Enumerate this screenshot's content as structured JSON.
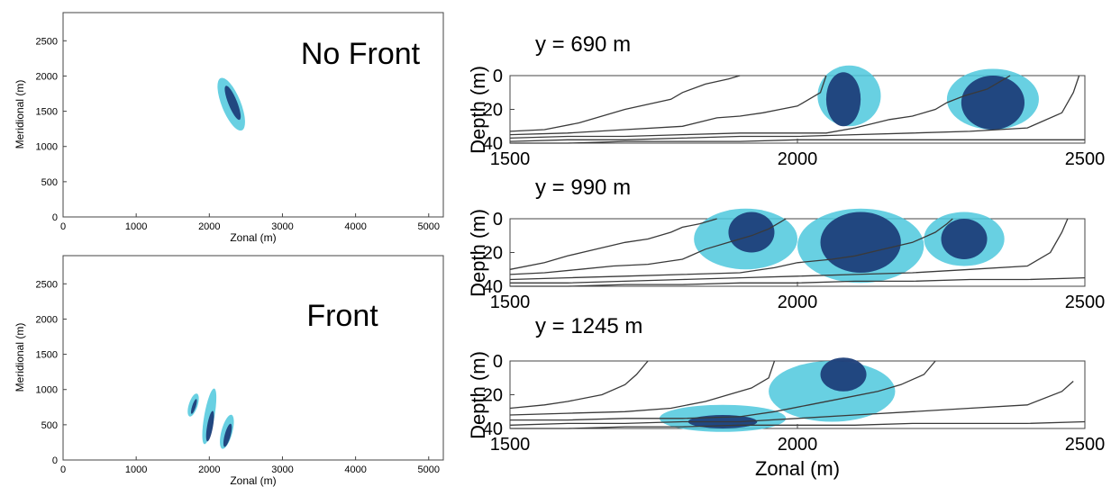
{
  "chart_data": [
    {
      "id": "map-no-front",
      "type": "scatter",
      "annotation": "No Front",
      "xlabel": "Zonal (m)",
      "ylabel": "Meridional (m)",
      "xlim": [
        0,
        5200
      ],
      "ylim": [
        0,
        2900
      ],
      "xticks": [
        0,
        1000,
        2000,
        3000,
        4000,
        5000
      ],
      "yticks": [
        0,
        500,
        1000,
        1500,
        2000,
        2500
      ],
      "colors": {
        "light": "#4ec8dd",
        "dark": "#1d3f7a"
      },
      "patches": [
        {
          "shade": "light",
          "x": 2300,
          "y": 1600,
          "rx": 130,
          "ry": 400,
          "rot": -22
        },
        {
          "shade": "dark",
          "x": 2320,
          "y": 1620,
          "rx": 60,
          "ry": 260,
          "rot": -22
        }
      ]
    },
    {
      "id": "map-front",
      "type": "scatter",
      "annotation": "Front",
      "xlabel": "Zonal (m)",
      "ylabel": "Meridional (m)",
      "xlim": [
        0,
        5200
      ],
      "ylim": [
        0,
        2900
      ],
      "xticks": [
        0,
        1000,
        2000,
        3000,
        4000,
        5000
      ],
      "yticks": [
        0,
        500,
        1000,
        1500,
        2000,
        2500
      ],
      "colors": {
        "light": "#4ec8dd",
        "dark": "#1d3f7a"
      },
      "patches": [
        {
          "shade": "light",
          "x": 1780,
          "y": 780,
          "rx": 60,
          "ry": 170,
          "rot": 18
        },
        {
          "shade": "dark",
          "x": 1790,
          "y": 760,
          "rx": 25,
          "ry": 110,
          "rot": 18
        },
        {
          "shade": "light",
          "x": 2000,
          "y": 620,
          "rx": 70,
          "ry": 400,
          "rot": 10
        },
        {
          "shade": "dark",
          "x": 2010,
          "y": 480,
          "rx": 40,
          "ry": 220,
          "rot": 10
        },
        {
          "shade": "light",
          "x": 2240,
          "y": 400,
          "rx": 75,
          "ry": 250,
          "rot": 15
        },
        {
          "shade": "dark",
          "x": 2250,
          "y": 350,
          "rx": 40,
          "ry": 170,
          "rot": 15
        }
      ]
    },
    {
      "id": "section-690",
      "type": "heatmap",
      "title": "y = 690 m",
      "xlabel": "",
      "ylabel": "Depth (m)",
      "xlim": [
        1500,
        2500
      ],
      "ylim": [
        0,
        40
      ],
      "xticks": [
        1500,
        2000,
        2500
      ],
      "yticks": [
        0,
        20,
        40
      ],
      "colors": {
        "light": "#4ec8dd",
        "dark": "#1d3f7a"
      },
      "patches": [
        {
          "shade": "light",
          "x": 2090,
          "y": 12,
          "rx": 55,
          "ry": 18,
          "rot": 0
        },
        {
          "shade": "dark",
          "x": 2080,
          "y": 14,
          "rx": 30,
          "ry": 16,
          "rot": 0
        },
        {
          "shade": "light",
          "x": 2340,
          "y": 14,
          "rx": 80,
          "ry": 18,
          "rot": 0
        },
        {
          "shade": "dark",
          "x": 2340,
          "y": 16,
          "rx": 55,
          "ry": 16,
          "rot": 0
        }
      ],
      "contours": [
        [
          [
            1500,
            33
          ],
          [
            1560,
            32
          ],
          [
            1620,
            28
          ],
          [
            1660,
            24
          ],
          [
            1700,
            20
          ],
          [
            1740,
            17
          ],
          [
            1780,
            14
          ],
          [
            1800,
            10
          ],
          [
            1840,
            5
          ],
          [
            1880,
            2
          ],
          [
            1900,
            0
          ]
        ],
        [
          [
            1500,
            35
          ],
          [
            1600,
            34
          ],
          [
            1700,
            32
          ],
          [
            1800,
            30
          ],
          [
            1860,
            25
          ],
          [
            1900,
            24
          ],
          [
            1940,
            22
          ],
          [
            1970,
            20
          ],
          [
            2000,
            18
          ],
          [
            2020,
            14
          ],
          [
            2040,
            10
          ],
          [
            2050,
            0
          ]
        ],
        [
          [
            1500,
            37
          ],
          [
            1600,
            36
          ],
          [
            1700,
            36
          ],
          [
            1800,
            35
          ],
          [
            1900,
            34
          ],
          [
            2000,
            34
          ],
          [
            2050,
            34
          ],
          [
            2100,
            31
          ],
          [
            2160,
            26
          ],
          [
            2200,
            24
          ],
          [
            2240,
            20
          ],
          [
            2260,
            16
          ],
          [
            2290,
            12
          ],
          [
            2330,
            8
          ],
          [
            2360,
            2
          ],
          [
            2370,
            0
          ]
        ],
        [
          [
            1500,
            39
          ],
          [
            1600,
            38
          ],
          [
            1700,
            38
          ],
          [
            1800,
            37
          ],
          [
            1900,
            36
          ],
          [
            2000,
            36
          ],
          [
            2100,
            35
          ],
          [
            2200,
            34
          ],
          [
            2300,
            33
          ],
          [
            2400,
            31
          ],
          [
            2460,
            22
          ],
          [
            2480,
            10
          ],
          [
            2490,
            0
          ]
        ],
        [
          [
            1500,
            40
          ],
          [
            1600,
            40
          ],
          [
            1700,
            39
          ],
          [
            1800,
            39
          ],
          [
            1900,
            39
          ],
          [
            2000,
            38
          ],
          [
            2100,
            38
          ],
          [
            2200,
            38
          ],
          [
            2300,
            38
          ],
          [
            2400,
            38
          ],
          [
            2500,
            38
          ]
        ]
      ]
    },
    {
      "id": "section-990",
      "type": "heatmap",
      "title": "y = 990 m",
      "xlabel": "",
      "ylabel": "Depth (m)",
      "xlim": [
        1500,
        2500
      ],
      "ylim": [
        0,
        40
      ],
      "xticks": [
        1500,
        2000,
        2500
      ],
      "yticks": [
        0,
        20,
        40
      ],
      "colors": {
        "light": "#4ec8dd",
        "dark": "#1d3f7a"
      },
      "patches": [
        {
          "shade": "light",
          "x": 1910,
          "y": 12,
          "rx": 90,
          "ry": 18,
          "rot": 0
        },
        {
          "shade": "dark",
          "x": 1920,
          "y": 8,
          "rx": 40,
          "ry": 12,
          "rot": 0
        },
        {
          "shade": "light",
          "x": 2110,
          "y": 16,
          "rx": 110,
          "ry": 22,
          "rot": 0
        },
        {
          "shade": "dark",
          "x": 2110,
          "y": 14,
          "rx": 70,
          "ry": 18,
          "rot": 0
        },
        {
          "shade": "light",
          "x": 2290,
          "y": 12,
          "rx": 70,
          "ry": 16,
          "rot": 0
        },
        {
          "shade": "dark",
          "x": 2290,
          "y": 12,
          "rx": 40,
          "ry": 12,
          "rot": 0
        }
      ],
      "contours": [
        [
          [
            1500,
            30
          ],
          [
            1560,
            26
          ],
          [
            1600,
            22
          ],
          [
            1650,
            18
          ],
          [
            1700,
            14
          ],
          [
            1740,
            12
          ],
          [
            1780,
            8
          ],
          [
            1800,
            5
          ],
          [
            1830,
            3
          ],
          [
            1860,
            0
          ]
        ],
        [
          [
            1500,
            33
          ],
          [
            1560,
            32
          ],
          [
            1620,
            30
          ],
          [
            1680,
            28
          ],
          [
            1740,
            27
          ],
          [
            1800,
            24
          ],
          [
            1840,
            18
          ],
          [
            1880,
            14
          ],
          [
            1920,
            10
          ],
          [
            1950,
            6
          ],
          [
            1970,
            2
          ],
          [
            1980,
            0
          ]
        ],
        [
          [
            1500,
            36
          ],
          [
            1600,
            35
          ],
          [
            1700,
            34
          ],
          [
            1800,
            33
          ],
          [
            1900,
            32
          ],
          [
            1960,
            29
          ],
          [
            2000,
            26
          ],
          [
            2060,
            24
          ],
          [
            2100,
            22
          ],
          [
            2150,
            18
          ],
          [
            2200,
            14
          ],
          [
            2240,
            8
          ],
          [
            2260,
            3
          ],
          [
            2270,
            0
          ]
        ],
        [
          [
            1500,
            38
          ],
          [
            1600,
            38
          ],
          [
            1700,
            37
          ],
          [
            1800,
            36
          ],
          [
            1900,
            35
          ],
          [
            2000,
            34
          ],
          [
            2100,
            33
          ],
          [
            2200,
            32
          ],
          [
            2300,
            30
          ],
          [
            2400,
            28
          ],
          [
            2440,
            20
          ],
          [
            2460,
            8
          ],
          [
            2470,
            0
          ]
        ],
        [
          [
            1500,
            40
          ],
          [
            1600,
            40
          ],
          [
            1700,
            39
          ],
          [
            1800,
            39
          ],
          [
            1900,
            38
          ],
          [
            2000,
            38
          ],
          [
            2100,
            37
          ],
          [
            2200,
            37
          ],
          [
            2300,
            36
          ],
          [
            2400,
            36
          ],
          [
            2500,
            35
          ]
        ]
      ]
    },
    {
      "id": "section-1245",
      "type": "heatmap",
      "title": "y = 1245 m",
      "xlabel": "Zonal (m)",
      "ylabel": "Depth (m)",
      "xlim": [
        1500,
        2500
      ],
      "ylim": [
        0,
        40
      ],
      "xticks": [
        1500,
        2000,
        2500
      ],
      "yticks": [
        0,
        20,
        40
      ],
      "colors": {
        "light": "#4ec8dd",
        "dark": "#1d3f7a"
      },
      "patches": [
        {
          "shade": "light",
          "x": 1870,
          "y": 34,
          "rx": 110,
          "ry": 8,
          "rot": 0
        },
        {
          "shade": "dark",
          "x": 1870,
          "y": 36,
          "rx": 60,
          "ry": 4,
          "rot": 0
        },
        {
          "shade": "light",
          "x": 2060,
          "y": 18,
          "rx": 110,
          "ry": 18,
          "rot": 0
        },
        {
          "shade": "dark",
          "x": 2080,
          "y": 8,
          "rx": 40,
          "ry": 10,
          "rot": 0
        }
      ],
      "contours": [
        [
          [
            1500,
            28
          ],
          [
            1560,
            26
          ],
          [
            1600,
            24
          ],
          [
            1660,
            20
          ],
          [
            1700,
            14
          ],
          [
            1720,
            8
          ],
          [
            1740,
            0
          ]
        ],
        [
          [
            1500,
            32
          ],
          [
            1600,
            31
          ],
          [
            1700,
            30
          ],
          [
            1780,
            28
          ],
          [
            1840,
            24
          ],
          [
            1880,
            20
          ],
          [
            1920,
            16
          ],
          [
            1950,
            10
          ],
          [
            1960,
            0
          ]
        ],
        [
          [
            1500,
            35
          ],
          [
            1600,
            35
          ],
          [
            1700,
            34
          ],
          [
            1800,
            34
          ],
          [
            1900,
            33
          ],
          [
            1960,
            30
          ],
          [
            2020,
            26
          ],
          [
            2080,
            22
          ],
          [
            2140,
            18
          ],
          [
            2180,
            14
          ],
          [
            2220,
            8
          ],
          [
            2240,
            0
          ]
        ],
        [
          [
            1500,
            38
          ],
          [
            1600,
            37
          ],
          [
            1700,
            37
          ],
          [
            1800,
            36
          ],
          [
            1900,
            36
          ],
          [
            2000,
            34
          ],
          [
            2100,
            32
          ],
          [
            2200,
            30
          ],
          [
            2300,
            28
          ],
          [
            2400,
            26
          ],
          [
            2460,
            18
          ],
          [
            2480,
            12
          ]
        ],
        [
          [
            1500,
            40
          ],
          [
            1600,
            40
          ],
          [
            1700,
            39
          ],
          [
            1800,
            39
          ],
          [
            1900,
            38
          ],
          [
            2000,
            38
          ],
          [
            2100,
            38
          ],
          [
            2200,
            37
          ],
          [
            2300,
            37
          ],
          [
            2400,
            37
          ],
          [
            2500,
            36
          ]
        ]
      ]
    }
  ]
}
